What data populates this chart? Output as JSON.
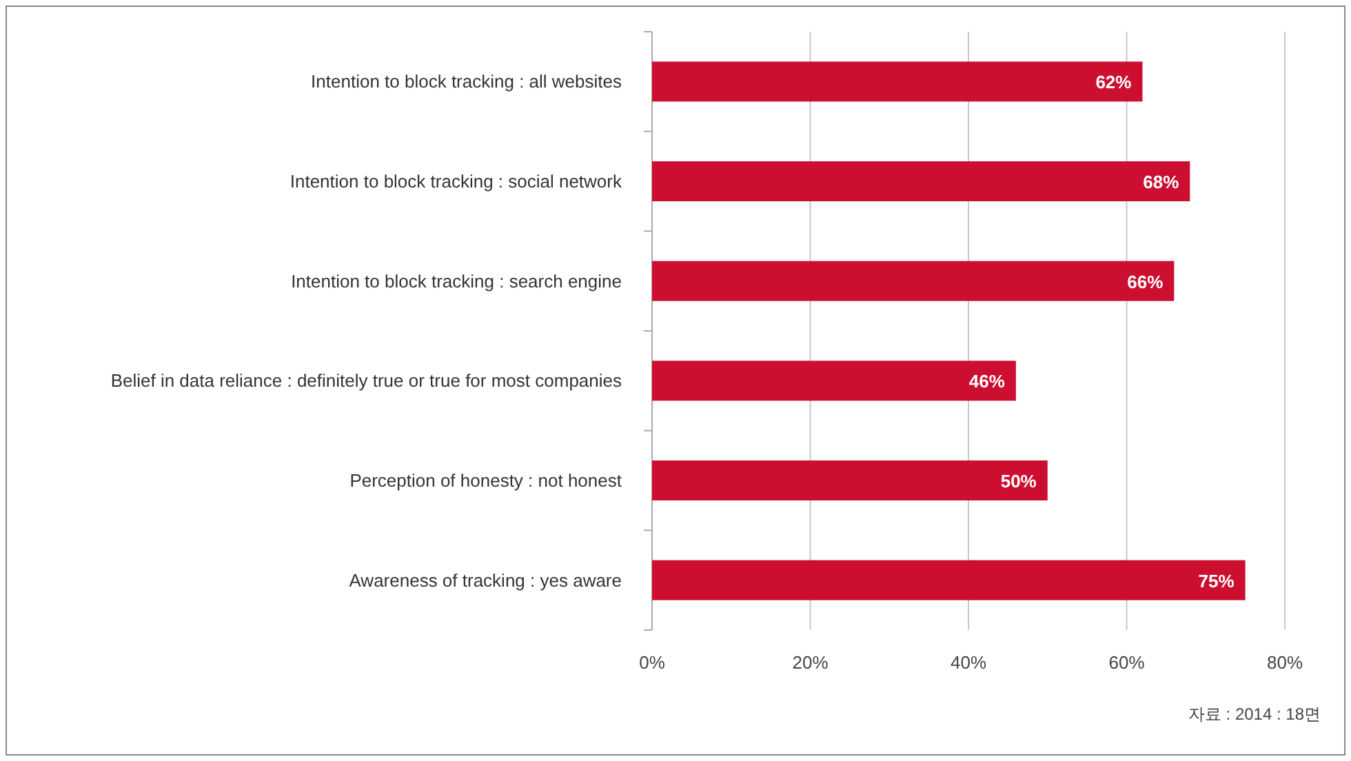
{
  "chart_data": {
    "type": "bar",
    "orientation": "horizontal",
    "categories": [
      "Intention to block tracking : all websites",
      "Intention to block tracking : social network",
      "Intention to block tracking : search engine",
      "Belief in data reliance : definitely true or true for most companies",
      "Perception of honesty : not honest",
      "Awareness of tracking : yes aware"
    ],
    "values": [
      62,
      68,
      66,
      46,
      50,
      75
    ],
    "value_labels": [
      "62%",
      "68%",
      "66%",
      "46%",
      "50%",
      "75%"
    ],
    "color": "#cc0f30",
    "xlim": [
      0,
      80
    ],
    "xticks": [
      {
        "value": 0,
        "label": "0%"
      },
      {
        "value": 20,
        "label": "20%"
      },
      {
        "value": 40,
        "label": "40%"
      },
      {
        "value": 60,
        "label": "60%"
      },
      {
        "value": 80,
        "label": "80%"
      }
    ],
    "grid": "x",
    "annotations": [
      "자료 : 2014 : 18면"
    ]
  }
}
